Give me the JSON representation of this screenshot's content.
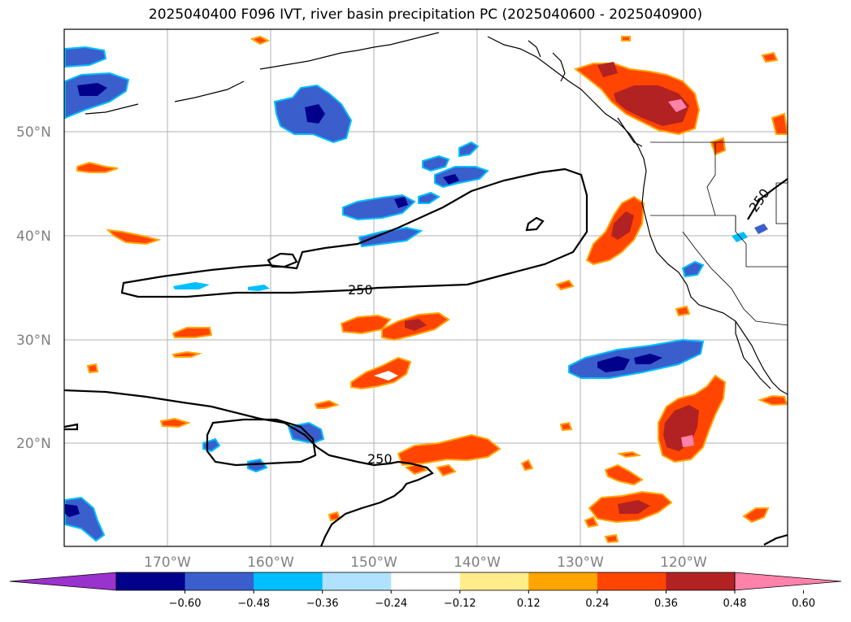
{
  "title": "2025040400 F096 IVT, river basin precipitation PC (2025040600 - 2025040900)",
  "map": {
    "lon_ticks": [
      "170°W",
      "160°W",
      "150°W",
      "140°W",
      "130°W",
      "120°W"
    ],
    "lat_ticks": [
      "50°N",
      "40°N",
      "30°N",
      "20°N"
    ],
    "contour_label": "250",
    "gridlines": true
  },
  "colorbar": {
    "ticks": [
      "−0.60",
      "−0.48",
      "−0.36",
      "−0.24",
      "−0.12",
      "0.12",
      "0.24",
      "0.36",
      "0.48",
      "0.60"
    ],
    "colors": [
      "#9a32cd",
      "#00008b",
      "#3a5fcd",
      "#00bfff",
      "#b0e2ff",
      "#ffffff",
      "#ffec8b",
      "#ffa500",
      "#ff4500",
      "#b22222",
      "#ff82ab"
    ],
    "extend": "both"
  }
}
